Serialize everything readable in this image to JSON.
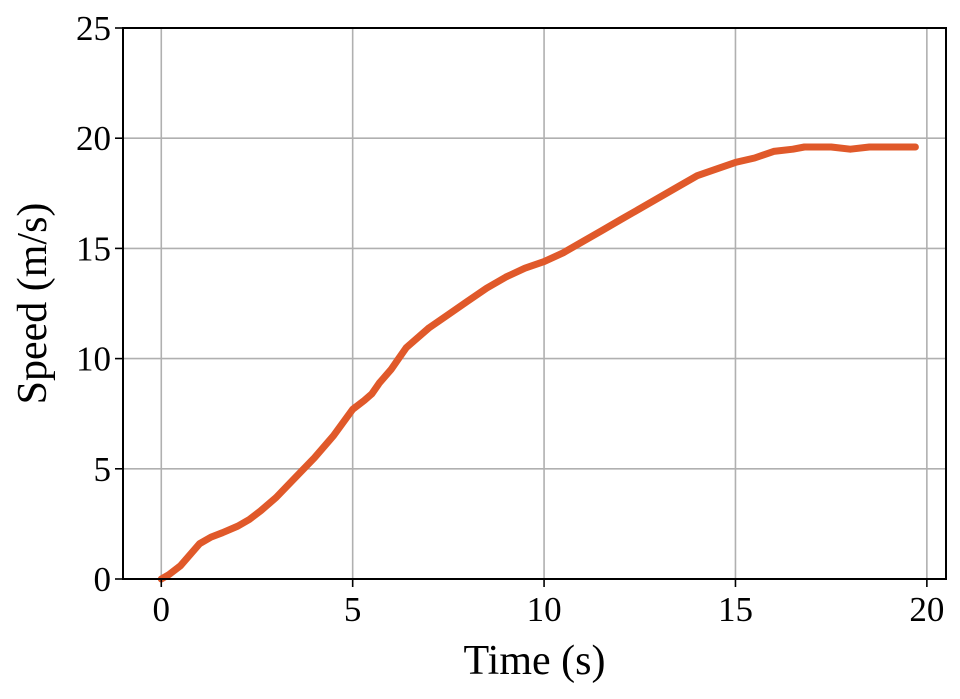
{
  "chart_data": {
    "type": "line",
    "title": "",
    "xlabel": "Time (s)",
    "ylabel": "Speed (m/s)",
    "xlim": [
      -1,
      20.5
    ],
    "ylim": [
      0,
      25
    ],
    "x_ticks": [
      0,
      5,
      10,
      15,
      20
    ],
    "y_ticks": [
      0,
      5,
      10,
      15,
      20,
      25
    ],
    "grid": true,
    "colors": {
      "line": "#e0592a",
      "grid": "#b0b0b0",
      "axes": "#000000"
    },
    "series": [
      {
        "x": [
          0.0,
          0.2,
          0.5,
          0.8,
          1.0,
          1.3,
          1.6,
          2.0,
          2.3,
          2.6,
          3.0,
          3.5,
          4.0,
          4.5,
          5.0,
          5.3,
          5.5,
          5.7,
          6.0,
          6.2,
          6.4,
          6.6,
          7.0,
          7.5,
          8.0,
          8.5,
          9.0,
          9.5,
          10.0,
          10.5,
          11.0,
          11.5,
          12.0,
          12.5,
          13.0,
          13.5,
          14.0,
          14.5,
          15.0,
          15.5,
          16.0,
          16.5,
          16.8,
          17.0,
          17.5,
          18.0,
          18.5,
          19.0,
          19.5,
          19.7
        ],
        "y": [
          0.0,
          0.2,
          0.6,
          1.2,
          1.6,
          1.9,
          2.1,
          2.4,
          2.7,
          3.1,
          3.7,
          4.6,
          5.5,
          6.5,
          7.7,
          8.1,
          8.4,
          8.9,
          9.5,
          10.0,
          10.5,
          10.8,
          11.4,
          12.0,
          12.6,
          13.2,
          13.7,
          14.1,
          14.4,
          14.8,
          15.3,
          15.8,
          16.3,
          16.8,
          17.3,
          17.8,
          18.3,
          18.6,
          18.9,
          19.1,
          19.4,
          19.5,
          19.6,
          19.6,
          19.6,
          19.5,
          19.6,
          19.6,
          19.6,
          19.6
        ]
      }
    ]
  }
}
